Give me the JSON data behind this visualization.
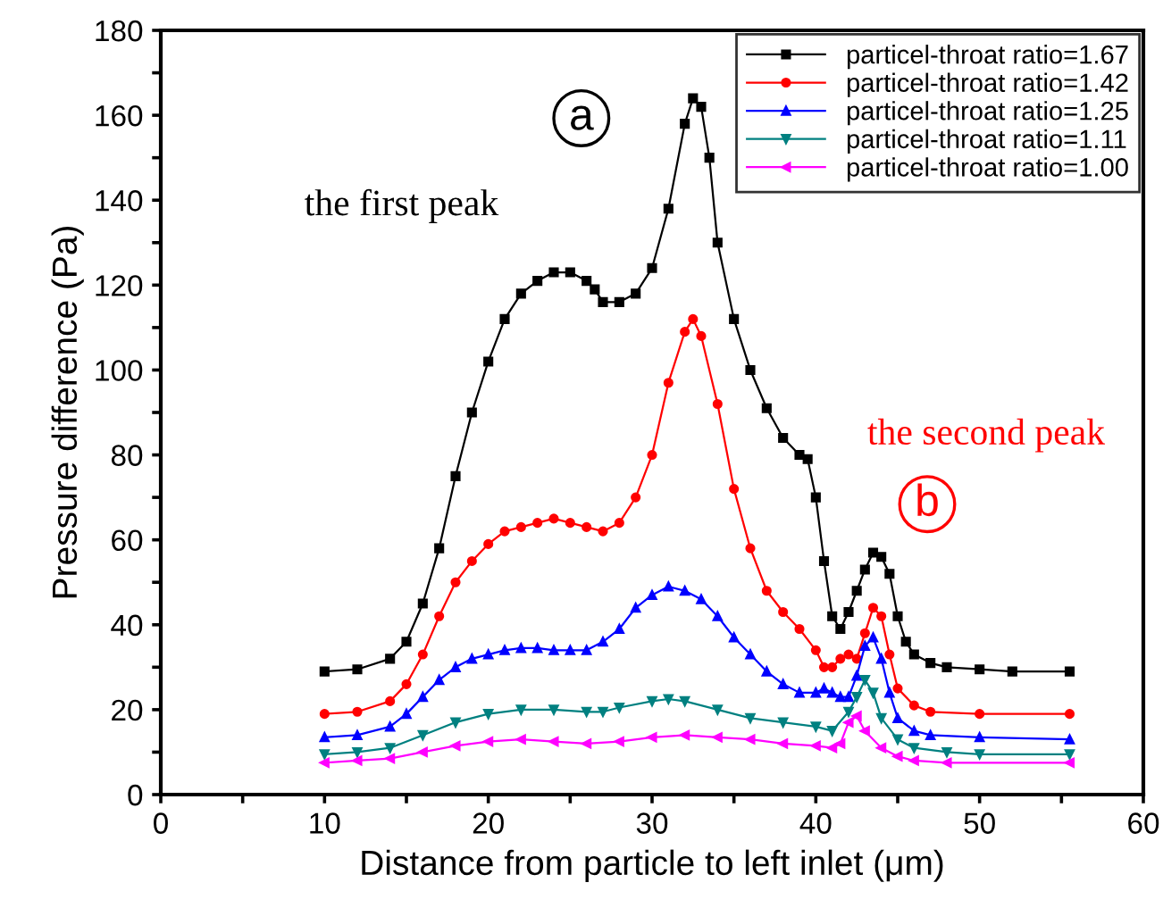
{
  "chart_data": {
    "type": "line",
    "xlabel": "Distance from particle to left inlet (μm)",
    "ylabel": "Pressure difference (Pa)",
    "xlim": [
      0,
      60
    ],
    "ylim": [
      0,
      180
    ],
    "xticks": [
      0,
      {
        "value": 5,
        "label": null
      },
      10,
      {
        "value": 15,
        "label": null
      },
      20,
      {
        "value": 25,
        "label": null
      },
      30,
      {
        "value": 35,
        "label": null
      },
      40,
      {
        "value": 45,
        "label": null
      },
      50,
      {
        "value": 55,
        "label": null
      },
      60
    ],
    "yticks": [
      0,
      {
        "value": 10,
        "label": null
      },
      20,
      {
        "value": 30,
        "label": null
      },
      40,
      {
        "value": 50,
        "label": null
      },
      60,
      {
        "value": 70,
        "label": null
      },
      80,
      {
        "value": 90,
        "label": null
      },
      100,
      {
        "value": 110,
        "label": null
      },
      120,
      {
        "value": 130,
        "label": null
      },
      140,
      {
        "value": 150,
        "label": null
      },
      160,
      {
        "value": 170,
        "label": null
      },
      180
    ],
    "grid": false,
    "legend": "top right",
    "line_style": "solid",
    "annotations": [
      "a",
      "the first peak",
      "the second peak",
      "b"
    ],
    "series": [
      {
        "name": "particel-throat ratio=1.67",
        "color": "#000000",
        "marker": "square",
        "x": [
          10,
          12,
          14,
          15,
          16,
          17,
          18,
          19,
          20,
          21,
          22,
          23,
          24,
          25,
          26,
          26.5,
          27,
          28,
          29,
          30,
          31,
          32,
          32.5,
          33,
          33.5,
          34,
          35,
          36,
          37,
          38,
          39,
          39.5,
          40,
          40.5,
          41,
          41.5,
          42,
          42.5,
          43,
          43.5,
          44,
          44.5,
          45,
          45.5,
          46,
          47,
          48,
          50,
          52,
          55.5
        ],
        "values": [
          29,
          29.5,
          32,
          36,
          45,
          58,
          75,
          90,
          102,
          112,
          118,
          121,
          123,
          123,
          121,
          119,
          116,
          116,
          118,
          124,
          138,
          158,
          164,
          162,
          150,
          130,
          112,
          100,
          91,
          84,
          80,
          79,
          70,
          55,
          42,
          39,
          43,
          48,
          53,
          57,
          56,
          52,
          42,
          36,
          33,
          31,
          30,
          29.5,
          29,
          29
        ]
      },
      {
        "name": "particel-throat ratio=1.42",
        "color": "#ff0000",
        "marker": "circle",
        "x": [
          10,
          12,
          14,
          15,
          16,
          17,
          18,
          19,
          20,
          21,
          22,
          23,
          24,
          25,
          26,
          27,
          28,
          29,
          30,
          31,
          32,
          32.5,
          33,
          34,
          35,
          36,
          37,
          38,
          39,
          40,
          40.5,
          41,
          41.5,
          42,
          42.5,
          43,
          43.5,
          44,
          44.5,
          45,
          46,
          47,
          50,
          55.5
        ],
        "values": [
          19,
          19.5,
          22,
          26,
          33,
          42,
          50,
          55,
          59,
          62,
          63,
          64,
          65,
          64,
          63,
          62,
          64,
          70,
          80,
          97,
          109,
          112,
          108,
          92,
          72,
          58,
          48,
          43,
          39,
          34,
          30,
          30,
          32,
          33,
          32,
          38,
          44,
          42,
          33,
          25,
          21,
          19.5,
          19,
          19
        ]
      },
      {
        "name": "particel-throat ratio=1.25",
        "color": "#0000ff",
        "marker": "triangle",
        "x": [
          10,
          12,
          14,
          15,
          16,
          17,
          18,
          19,
          20,
          21,
          22,
          23,
          24,
          25,
          26,
          27,
          28,
          29,
          30,
          31,
          32,
          33,
          34,
          35,
          36,
          37,
          38,
          39,
          40,
          40.5,
          41,
          41.5,
          42,
          42.5,
          43,
          43.5,
          44,
          44.5,
          45,
          46,
          47,
          50,
          55.5
        ],
        "values": [
          13.5,
          14,
          16,
          19,
          23,
          27,
          30,
          32,
          33,
          34,
          34.5,
          34.5,
          34,
          34,
          34,
          36,
          39,
          44,
          47,
          49,
          48,
          46,
          42,
          37,
          33,
          29,
          26,
          24,
          24,
          25,
          24,
          23,
          23,
          28,
          35,
          37,
          32,
          24,
          18,
          15,
          14,
          13.5,
          13
        ]
      },
      {
        "name": "particel-throat ratio=1.11",
        "color": "#008080",
        "marker": "triangle_down",
        "x": [
          10,
          12,
          14,
          16,
          18,
          20,
          22,
          24,
          26,
          27,
          28,
          30,
          31,
          32,
          34,
          36,
          38,
          40,
          41,
          42,
          42.5,
          43,
          43.5,
          44,
          45,
          46,
          48,
          50,
          55.5
        ],
        "values": [
          9.5,
          10,
          11,
          14,
          17,
          19,
          20,
          20,
          19.5,
          19.5,
          20.5,
          22,
          22.5,
          22,
          20,
          18,
          17,
          16,
          15,
          19.5,
          23,
          27,
          24,
          18,
          13,
          11,
          10,
          9.5,
          9.5
        ]
      },
      {
        "name": "particel-throat ratio=1.00",
        "color": "#ff00ff",
        "marker": "triangle_left",
        "x": [
          10,
          12,
          14,
          16,
          18,
          20,
          22,
          24,
          26,
          28,
          30,
          32,
          34,
          36,
          38,
          40,
          41,
          41.5,
          42,
          42.5,
          43,
          44,
          45,
          46,
          48,
          55.5
        ],
        "values": [
          7.5,
          8,
          8.5,
          10,
          11.5,
          12.5,
          13,
          12.5,
          12,
          12.5,
          13.5,
          14,
          13.5,
          13,
          12,
          11.5,
          11,
          12,
          17,
          18.5,
          15,
          11,
          9,
          8,
          7.5,
          7.5
        ]
      }
    ]
  }
}
